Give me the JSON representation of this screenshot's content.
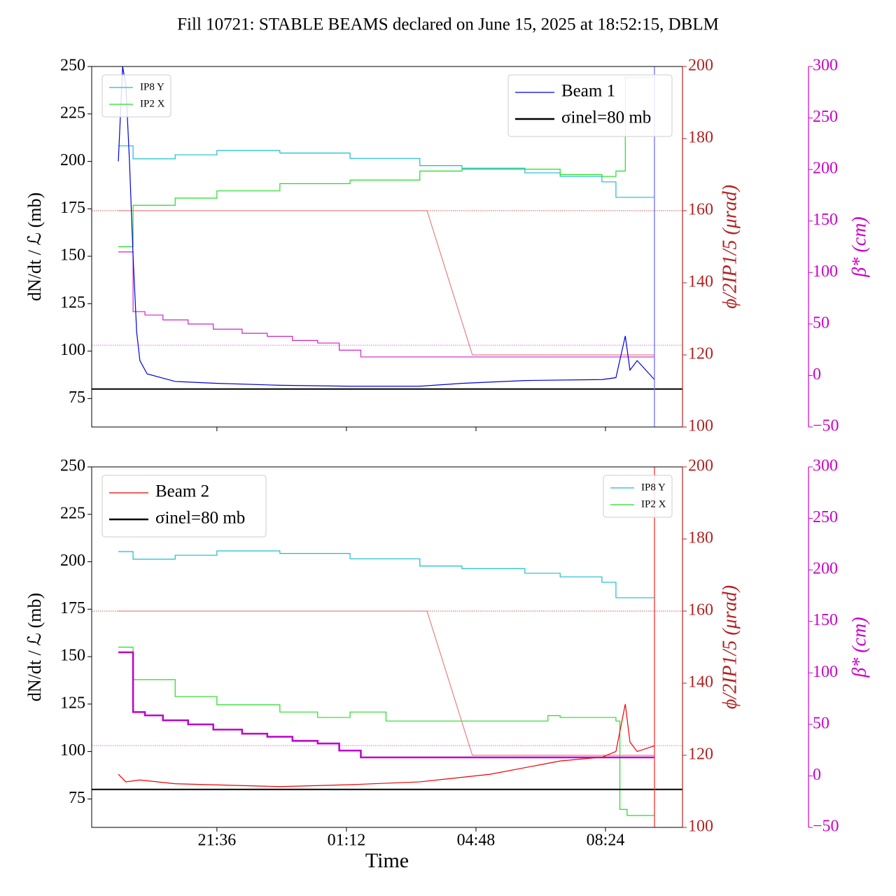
{
  "title": "Fill 10721: STABLE BEAMS declared on June 15, 2025 at 18:52:15, DBLM",
  "chart_data": [
    {
      "type": "line",
      "ylabel": "dN/dt / ℒ (mb)",
      "y2label": "ϕ/2IP1/5 (μrad)",
      "y3label": "β* (cm)",
      "xlim": [
        18.12,
        34.54
      ],
      "xticks": [
        21.6,
        25.2,
        28.8,
        32.4
      ],
      "ylim": [
        60,
        250
      ],
      "yticks": [
        75,
        100,
        125,
        150,
        175,
        200,
        225,
        250
      ],
      "y2lim": [
        100,
        200
      ],
      "y2ticks": [
        100,
        120,
        140,
        160,
        180,
        200
      ],
      "y3lim": [
        -50,
        300
      ],
      "y3ticks": [
        {
          "value": -50,
          "label": "−50"
        },
        0,
        50,
        100,
        150,
        200,
        250,
        300
      ],
      "legend_main": "upper right",
      "legend_small": "upper left",
      "vline": {
        "x": 33.76,
        "color": "#6f6fff"
      },
      "ref_lines": [
        {
          "axis": "y2",
          "value": 160,
          "color": "#b22222"
        },
        {
          "axis": "y2",
          "value": 122.7,
          "color": "#cc44cc"
        }
      ],
      "series": [
        {
          "name": "IP8 Y",
          "color": "#17becf",
          "axis": "y2",
          "legend": "small",
          "steps": true,
          "x": [
            18.86,
            19.07,
            19.27,
            20.44,
            21.6,
            23.35,
            25.3,
            27.24,
            28.41,
            30.16,
            31.14,
            32.3,
            32.69,
            33.76
          ],
          "values": [
            178,
            178,
            174.4,
            175.5,
            176.7,
            176,
            174.5,
            172.5,
            171.8,
            170.5,
            169.5,
            168,
            163.7,
            163.7
          ]
        },
        {
          "name": "IP2 X",
          "color": "#22dd22",
          "axis": "y2",
          "legend": "small",
          "steps": true,
          "x": [
            18.86,
            19.27,
            20.44,
            21.6,
            23.35,
            25.3,
            27.24,
            28.41,
            29.19,
            31.14,
            32.3,
            32.69,
            32.95,
            33.76
          ],
          "values": [
            150,
            161.5,
            163.5,
            165.5,
            167.5,
            168.5,
            171,
            171.5,
            171.5,
            170,
            169.5,
            171,
            197,
            197
          ]
        },
        {
          "color": "#e88080",
          "axis": "y2",
          "steps": false,
          "x": [
            18.86,
            27.44,
            28.7,
            33.76
          ],
          "values": [
            160,
            160,
            120,
            120
          ]
        },
        {
          "color": "#cc22cc",
          "axis": "y3",
          "steps": true,
          "x": [
            18.86,
            19.27,
            19.6,
            20.1,
            20.8,
            21.5,
            22.3,
            23.0,
            23.7,
            24.4,
            25.0,
            25.6,
            33.76
          ],
          "values": [
            120,
            62,
            58.7,
            54,
            50,
            45,
            41,
            38,
            34,
            31.5,
            24.6,
            18,
            18
          ]
        },
        {
          "name": "Beam 1",
          "color": "#0000dd",
          "axis": "y",
          "legend": "main",
          "steps": false,
          "x": [
            18.86,
            18.98,
            19.07,
            19.17,
            19.27,
            19.37,
            19.46,
            19.66,
            20.44,
            21.6,
            23.35,
            25.3,
            27.24,
            28.41,
            30.16,
            32.3,
            32.69,
            32.95,
            33.08,
            33.28,
            33.76
          ],
          "values": [
            200,
            250,
            240,
            200,
            150,
            110,
            95,
            88,
            84,
            83,
            82,
            81.5,
            81.5,
            83,
            84.5,
            85,
            86,
            108,
            90,
            95,
            85
          ]
        },
        {
          "name": "σinel=80 mb",
          "color": "#000000",
          "axis": "y",
          "legend": "main",
          "hline": 80
        }
      ]
    },
    {
      "type": "line",
      "ylabel": "dN/dt / ℒ (mb)",
      "y2label": "ϕ/2IP1/5 (μrad)",
      "y3label": "β* (cm)",
      "xlabel": "Time",
      "xlim": [
        18.12,
        34.54
      ],
      "xticks": [
        {
          "value": 21.6,
          "label": "21:36"
        },
        {
          "value": 25.2,
          "label": "01:12"
        },
        {
          "value": 28.8,
          "label": "04:48"
        },
        {
          "value": 32.4,
          "label": "08:24"
        }
      ],
      "ylim": [
        60,
        250
      ],
      "yticks": [
        75,
        100,
        125,
        150,
        175,
        200,
        225,
        250
      ],
      "y2lim": [
        100,
        200
      ],
      "y2ticks": [
        100,
        120,
        140,
        160,
        180,
        200
      ],
      "y3lim": [
        -50,
        300
      ],
      "y3ticks": [
        {
          "value": -50,
          "label": "−50"
        },
        0,
        50,
        100,
        150,
        200,
        250,
        300
      ],
      "legend_main": "upper left",
      "legend_small": "upper right",
      "vline": {
        "x": 33.76,
        "color": "#ff3333"
      },
      "ref_lines": [
        {
          "axis": "y2",
          "value": 160,
          "color": "#b22222"
        },
        {
          "axis": "y2",
          "value": 122.7,
          "color": "#cc44cc"
        }
      ],
      "series": [
        {
          "name": "IP8 Y",
          "color": "#17becf",
          "axis": "y2",
          "legend": "small",
          "steps": true,
          "x": [
            18.86,
            19.07,
            19.27,
            20.44,
            21.6,
            23.35,
            25.3,
            27.24,
            28.41,
            30.16,
            31.14,
            32.3,
            32.69,
            33.76
          ],
          "values": [
            176.5,
            176.5,
            174.4,
            175.5,
            176.7,
            176,
            174.5,
            172.5,
            171.8,
            170.5,
            169.5,
            168,
            163.7,
            163.7
          ]
        },
        {
          "name": "IP2 X",
          "color": "#22dd22",
          "axis": "y2",
          "legend": "small",
          "steps": true,
          "x": [
            18.86,
            19.27,
            20.44,
            21.6,
            23.35,
            24.4,
            25.3,
            26.3,
            30.16,
            30.8,
            31.14,
            32.69,
            32.8,
            33.0,
            33.76
          ],
          "values": [
            150,
            141,
            136.3,
            134,
            132,
            130.5,
            132,
            129.5,
            129.5,
            131,
            130.5,
            129.5,
            105,
            103.3,
            104.7
          ]
        },
        {
          "color": "#e88080",
          "axis": "y2",
          "steps": false,
          "x": [
            18.86,
            27.44,
            28.7,
            33.76
          ],
          "values": [
            160,
            160,
            120,
            120
          ]
        },
        {
          "color": "#bb00cc",
          "axis": "y3",
          "steps": true,
          "width": 2.5,
          "x": [
            18.86,
            19.27,
            19.6,
            20.1,
            20.8,
            21.5,
            22.3,
            23.0,
            23.7,
            24.4,
            25.0,
            25.6,
            33.76
          ],
          "values": [
            120,
            62,
            58.7,
            54,
            50,
            45,
            41,
            38,
            34,
            31.5,
            24.6,
            18,
            18
          ]
        },
        {
          "name": "Beam 2",
          "color": "#ee0000",
          "axis": "y",
          "legend": "main",
          "steps": false,
          "x": [
            18.86,
            19.07,
            19.46,
            20.44,
            23.35,
            25.3,
            27.24,
            29.19,
            31.14,
            32.3,
            32.69,
            32.95,
            33.08,
            33.28,
            33.76
          ],
          "values": [
            88,
            84,
            85,
            83,
            81.5,
            82.5,
            84,
            88,
            95,
            97,
            100,
            125,
            105,
            100,
            103
          ]
        },
        {
          "name": "σinel=80 mb",
          "color": "#000000",
          "axis": "y",
          "legend": "main",
          "hline": 80
        }
      ]
    }
  ]
}
